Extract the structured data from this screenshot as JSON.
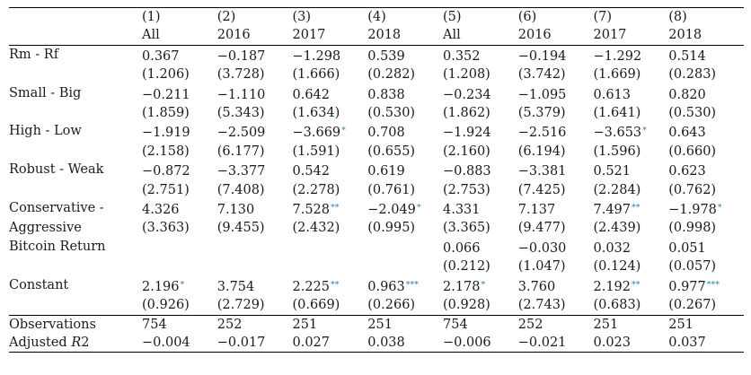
{
  "table": {
    "columns": [
      {
        "num": "(1)",
        "sample": "All"
      },
      {
        "num": "(2)",
        "sample": "2016"
      },
      {
        "num": "(3)",
        "sample": "2017"
      },
      {
        "num": "(4)",
        "sample": "2018"
      },
      {
        "num": "(5)",
        "sample": "All"
      },
      {
        "num": "(6)",
        "sample": "2016"
      },
      {
        "num": "(7)",
        "sample": "2017"
      },
      {
        "num": "(8)",
        "sample": "2018"
      }
    ],
    "rows": [
      {
        "label": "Rm - Rf",
        "label2": "",
        "coef": [
          "0.367",
          "−0.187",
          "−1.298",
          "0.539",
          "0.352",
          "−0.194",
          "−1.292",
          "0.514"
        ],
        "stars": [
          "",
          "",
          "",
          "",
          "",
          "",
          "",
          ""
        ],
        "se": [
          "(1.206)",
          "(3.728)",
          "(1.666)",
          "(0.282)",
          "(1.208)",
          "(3.742)",
          "(1.669)",
          "(0.283)"
        ]
      },
      {
        "label": "Small - Big",
        "label2": "",
        "coef": [
          "−0.211",
          "−1.110",
          "0.642",
          "0.838",
          "−0.234",
          "−1.095",
          "0.613",
          "0.820"
        ],
        "stars": [
          "",
          "",
          "",
          "",
          "",
          "",
          "",
          ""
        ],
        "se": [
          "(1.859)",
          "(5.343)",
          "(1.634)",
          "(0.530)",
          "(1.862)",
          "(5.379)",
          "(1.641)",
          "(0.530)"
        ]
      },
      {
        "label": "High - Low",
        "label2": "",
        "coef": [
          "−1.919",
          "−2.509",
          "−3.669",
          "0.708",
          "−1.924",
          "−2.516",
          "−3.653",
          "0.643"
        ],
        "stars": [
          "",
          "",
          "*",
          "",
          "",
          "",
          "*",
          ""
        ],
        "se": [
          "(2.158)",
          "(6.177)",
          "(1.591)",
          "(0.655)",
          "(2.160)",
          "(6.194)",
          "(1.596)",
          "(0.660)"
        ]
      },
      {
        "label": "Robust - Weak",
        "label2": "",
        "coef": [
          "−0.872",
          "−3.377",
          "0.542",
          "0.619",
          "−0.883",
          "−3.381",
          "0.521",
          "0.623"
        ],
        "stars": [
          "",
          "",
          "",
          "",
          "",
          "",
          "",
          ""
        ],
        "se": [
          "(2.751)",
          "(7.408)",
          "(2.278)",
          "(0.761)",
          "(2.753)",
          "(7.425)",
          "(2.284)",
          "(0.762)"
        ]
      },
      {
        "label": "Conservative -",
        "label2": "Aggressive",
        "coef": [
          "4.326",
          "7.130",
          "7.528",
          "−2.049",
          "4.331",
          "7.137",
          "7.497",
          "−1.978"
        ],
        "stars": [
          "",
          "",
          "**",
          "*",
          "",
          "",
          "**",
          "*"
        ],
        "se": [
          "(3.363)",
          "(9.455)",
          "(2.432)",
          "(0.995)",
          "(3.365)",
          "(9.477)",
          "(2.439)",
          "(0.998)"
        ]
      },
      {
        "label": "Bitcoin Return",
        "label2": "",
        "coef": [
          "",
          "",
          "",
          "",
          "0.066",
          "−0.030",
          "0.032",
          "0.051"
        ],
        "stars": [
          "",
          "",
          "",
          "",
          "",
          "",
          "",
          ""
        ],
        "se": [
          "",
          "",
          "",
          "",
          "(0.212)",
          "(1.047)",
          "(0.124)",
          "(0.057)"
        ]
      },
      {
        "label": "Constant",
        "label2": "",
        "coef": [
          "2.196",
          "3.754",
          "2.225",
          "0.963",
          "2.178",
          "3.760",
          "2.192",
          "0.977"
        ],
        "stars": [
          "*",
          "",
          "**",
          "***",
          "*",
          "",
          "**",
          "***"
        ],
        "se": [
          "(0.926)",
          "(2.729)",
          "(0.669)",
          "(0.266)",
          "(0.928)",
          "(2.743)",
          "(0.683)",
          "(0.267)"
        ]
      }
    ],
    "observations": {
      "label": "Observations",
      "values": [
        "754",
        "252",
        "251",
        "251",
        "754",
        "252",
        "251",
        "251"
      ]
    },
    "adj_r2": {
      "label": "Adjusted ",
      "label_italic": "R",
      "label_sup": "2",
      "values": [
        "−0.004",
        "−0.017",
        "0.027",
        "0.038",
        "−0.006",
        "−0.021",
        "0.023",
        "0.037"
      ]
    }
  }
}
